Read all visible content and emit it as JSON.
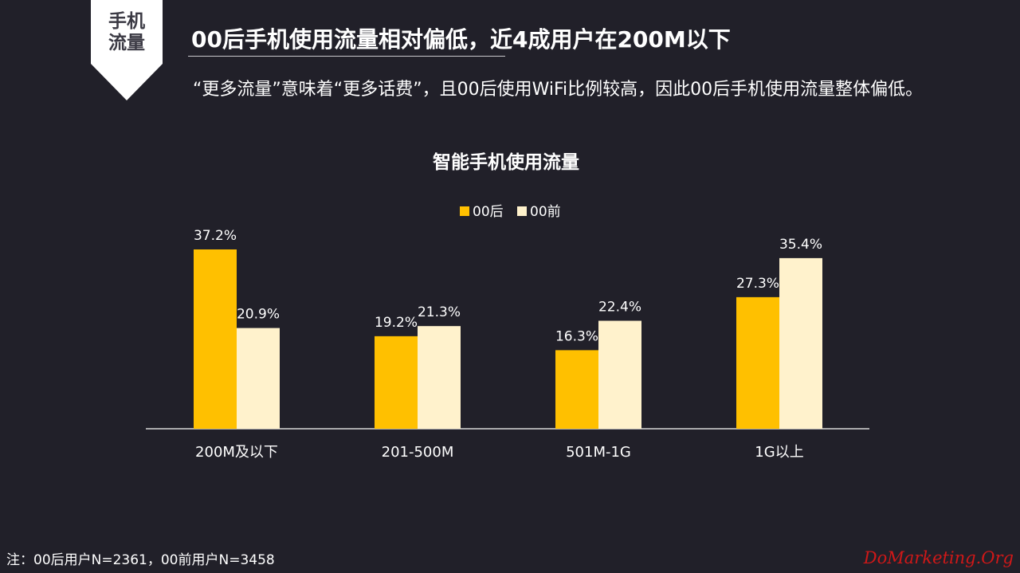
{
  "badge": {
    "line1": "手机",
    "line2": "流量",
    "bg_color": "#ffffff",
    "text_color": "#3b3a44"
  },
  "header": {
    "title": "00后手机使用流量相对偏低，近4成用户在200M以下",
    "subtitle": "“更多流量”意味着“更多话费”，且00后使用WiFi比例较高，因此00后手机使用流量整体偏低。"
  },
  "chart_data": {
    "type": "bar",
    "title": "智能手机使用流量",
    "categories": [
      "200M及以下",
      "201-500M",
      "501M-1G",
      "1G以上"
    ],
    "series": [
      {
        "name": "00后",
        "values": [
          37.2,
          19.2,
          16.3,
          27.3
        ],
        "color": "#ffc000"
      },
      {
        "name": "00前",
        "values": [
          20.9,
          21.3,
          22.4,
          35.4
        ],
        "color": "#fff2cc"
      }
    ],
    "value_suffix": "%",
    "legend_position": "top-center",
    "grid": false,
    "ylim": [
      0,
      40
    ]
  },
  "footer": {
    "note": "注：00后用户N=2361，00前用户N=3458",
    "watermark": "DoMarketing.Org"
  }
}
